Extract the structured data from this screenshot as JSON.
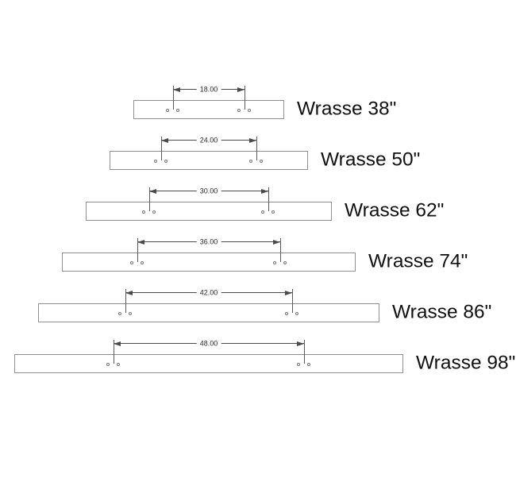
{
  "drawing": {
    "background_color": "#ffffff",
    "line_color": "#4a4a4a",
    "bar_outline_color": "#8e8e8e",
    "label_color": "#111111",
    "bars": [
      {
        "label": "Wrasse 38\"",
        "length_in": 38,
        "hole_spacing_in": 18,
        "dim_text": "18.00"
      },
      {
        "label": "Wrasse 50\"",
        "length_in": 50,
        "hole_spacing_in": 24,
        "dim_text": "24.00"
      },
      {
        "label": "Wrasse 62\"",
        "length_in": 62,
        "hole_spacing_in": 30,
        "dim_text": "30.00"
      },
      {
        "label": "Wrasse 74\"",
        "length_in": 74,
        "hole_spacing_in": 36,
        "dim_text": "36.00"
      },
      {
        "label": "Wrasse 86\"",
        "length_in": 86,
        "hole_spacing_in": 42,
        "dim_text": "42.00"
      },
      {
        "label": "Wrasse 98\"",
        "length_in": 98,
        "hole_spacing_in": 48,
        "dim_text": "48.00"
      }
    ]
  }
}
